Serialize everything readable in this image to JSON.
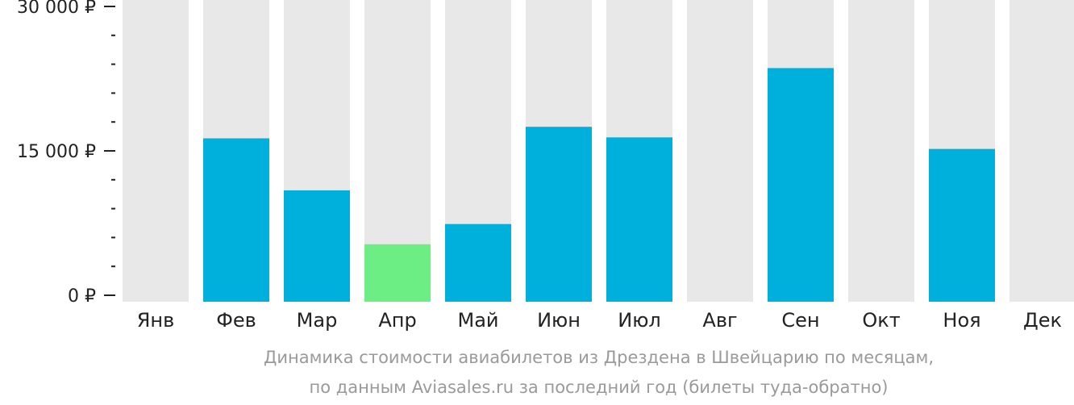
{
  "chart_data": {
    "type": "bar",
    "categories": [
      "Янв",
      "Фев",
      "Мар",
      "Апр",
      "Май",
      "Июн",
      "Июл",
      "Авг",
      "Сен",
      "Окт",
      "Ноя",
      "Дек"
    ],
    "values": [
      null,
      16300,
      10900,
      5300,
      7400,
      17500,
      16400,
      null,
      23600,
      null,
      15200,
      null
    ],
    "highlight_index": 3,
    "ylim": [
      0,
      30000
    ],
    "y_ticks": [
      {
        "value": 0,
        "label": "0 ₽"
      },
      {
        "value": 15000,
        "label": "15 000 ₽"
      },
      {
        "value": 30000,
        "label": "30 000 ₽"
      }
    ],
    "minor_tick_step": 3000,
    "colors": {
      "bar": "#00b0dc",
      "highlight": "#6cee85",
      "background_bar": "#e8e8e8",
      "axis": "#222222"
    }
  },
  "caption": {
    "line1": "Динамика стоимости авиабилетов из Дрездена в Швейцарию по месяцам,",
    "line2": "по данным Aviasales.ru за последний год (билеты туда-обратно)"
  }
}
